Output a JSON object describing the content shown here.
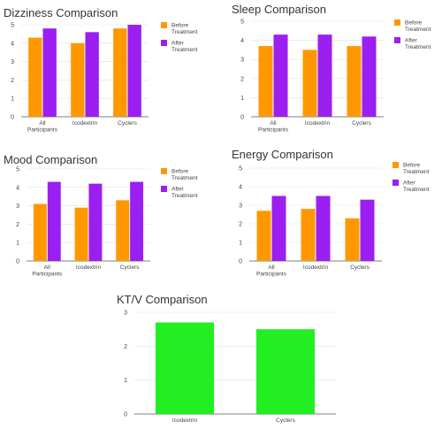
{
  "colors": {
    "before": "#ff9800",
    "after": "#9b1ff0",
    "single": "#22ee22",
    "grid": "#e2e2e2",
    "axis": "#555555"
  },
  "chart_data": [
    {
      "type": "bar",
      "title": "Dizziness Comparison",
      "categories": [
        "All Participants",
        "Icodextrin",
        "Cyclers"
      ],
      "series": [
        {
          "name": "Before Treatment",
          "values": [
            4.3,
            4.0,
            4.8
          ]
        },
        {
          "name": "After Treatment",
          "values": [
            4.8,
            4.6,
            5.0
          ]
        }
      ],
      "ylim": [
        0,
        5
      ],
      "yticks": [
        0,
        1,
        2,
        3,
        4,
        5
      ],
      "grid": true,
      "legend": "right"
    },
    {
      "type": "bar",
      "title": "Sleep Comparison",
      "categories": [
        "All Participants",
        "Icodextrin",
        "Cyclers"
      ],
      "series": [
        {
          "name": "Before Treatment",
          "values": [
            3.7,
            3.5,
            3.7
          ]
        },
        {
          "name": "After Treatment",
          "values": [
            4.3,
            4.3,
            4.2
          ]
        }
      ],
      "ylim": [
        0,
        5
      ],
      "yticks": [
        0,
        1,
        2,
        3,
        4,
        5
      ],
      "grid": true,
      "legend": "right"
    },
    {
      "type": "bar",
      "title": "Mood Comparison",
      "categories": [
        "All Participants",
        "Icodextrin",
        "Cyclers"
      ],
      "series": [
        {
          "name": "Before Treatment",
          "values": [
            3.1,
            2.9,
            3.3
          ]
        },
        {
          "name": "After Treatment",
          "values": [
            4.3,
            4.2,
            4.3
          ]
        }
      ],
      "ylim": [
        0,
        5
      ],
      "yticks": [
        0,
        1,
        2,
        3,
        4,
        5
      ],
      "grid": true,
      "legend": "right"
    },
    {
      "type": "bar",
      "title": "Energy Comparison",
      "categories": [
        "All Participants",
        "Icodextrin",
        "Cyclers"
      ],
      "series": [
        {
          "name": "Before Treatment",
          "values": [
            2.7,
            2.8,
            2.3
          ]
        },
        {
          "name": "After Treatment",
          "values": [
            3.5,
            3.5,
            3.3
          ]
        }
      ],
      "ylim": [
        0,
        5
      ],
      "yticks": [
        0,
        1,
        2,
        3,
        4,
        5
      ],
      "grid": true,
      "legend": "right"
    },
    {
      "type": "bar",
      "title": "KT/V Comparison",
      "categories": [
        "Icodextrin",
        "Cyclers"
      ],
      "series": [
        {
          "values": [
            2.7,
            2.5
          ]
        }
      ],
      "ylim": [
        0,
        3
      ],
      "yticks": [
        0,
        1,
        2,
        3
      ],
      "grid": true,
      "legend": "none"
    }
  ]
}
